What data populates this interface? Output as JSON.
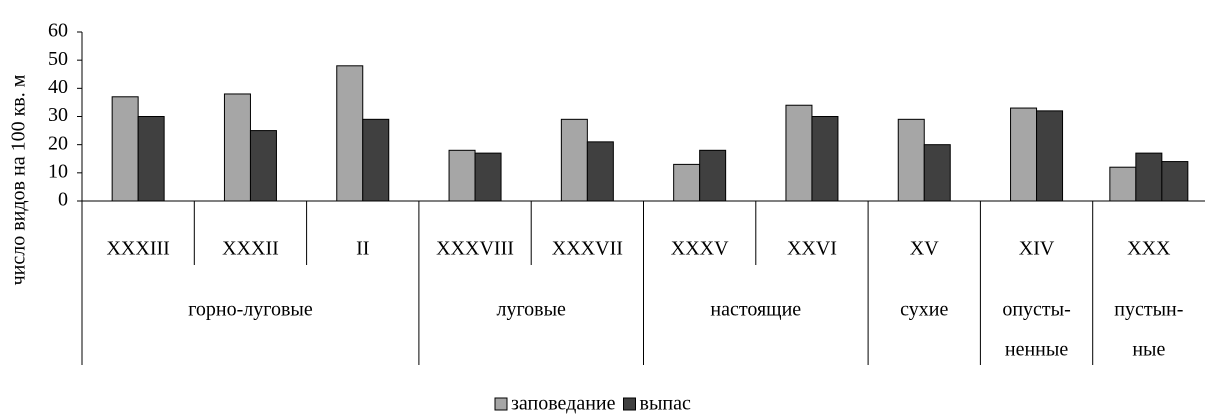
{
  "chart_data": {
    "type": "bar",
    "ylabel": "число видов на 100 кв. м",
    "categories": [
      "XXXIII",
      "XXXII",
      "II",
      "XXXVIII",
      "XXXVII",
      "XXXV",
      "XXVI",
      "XV",
      "XIV",
      "XXX"
    ],
    "groups": [
      {
        "label": [
          "горно-луговые"
        ],
        "span": 3
      },
      {
        "label": [
          "луговые"
        ],
        "span": 2
      },
      {
        "label": [
          "настоящие"
        ],
        "span": 2
      },
      {
        "label": [
          "сухие"
        ],
        "span": 1
      },
      {
        "label": [
          "опусты-",
          "ненные"
        ],
        "span": 1
      },
      {
        "label": [
          "пустын-",
          "ные"
        ],
        "span": 1
      }
    ],
    "series": [
      {
        "name": "заповедание",
        "color": "#a6a6a6",
        "values": [
          37,
          38,
          48,
          18,
          29,
          13,
          34,
          29,
          33,
          12
        ]
      },
      {
        "name": "выпас",
        "color": "#404040",
        "values": [
          30,
          25,
          29,
          17,
          21,
          18,
          30,
          20,
          32,
          17
        ]
      },
      {
        "color": "#404040",
        "values": [
          null,
          null,
          null,
          null,
          null,
          null,
          null,
          null,
          null,
          14
        ]
      }
    ],
    "ylim": [
      0,
      60
    ],
    "yticks": [
      0,
      10,
      20,
      30,
      40,
      50,
      60
    ]
  }
}
